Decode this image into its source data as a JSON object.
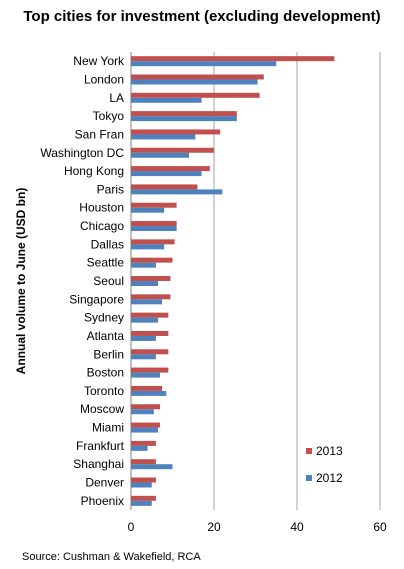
{
  "chart_data": {
    "type": "bar",
    "orientation": "horizontal",
    "title": "Top cities for investment (excluding development)",
    "ylabel": "Annual volume to June (USD bn)",
    "xlabel": "",
    "source": "Source: Cushman & Wakefield, RCA",
    "xlim": [
      0,
      60
    ],
    "xticks": [
      "0",
      "20",
      "40",
      "60"
    ],
    "grid": true,
    "legend_position": "lower-right",
    "categories": [
      "New York",
      "London",
      "LA",
      "Tokyo",
      "San Fran",
      "Washington DC",
      "Hong Kong",
      "Paris",
      "Houston",
      "Chicago",
      "Dallas",
      "Seattle",
      "Seoul",
      "Singapore",
      "Sydney",
      "Atlanta",
      "Berlin",
      "Boston",
      "Toronto",
      "Moscow",
      "Miami",
      "Frankfurt",
      "Shanghai",
      "Denver",
      "Phoenix"
    ],
    "series": [
      {
        "name": "2013",
        "color": "#c0504d",
        "values": [
          49,
          32,
          31,
          25.5,
          21.5,
          20,
          19,
          16,
          11,
          11,
          10.5,
          10,
          9.5,
          9.5,
          9,
          9,
          9,
          9,
          7.5,
          7,
          7,
          6,
          6,
          6,
          6
        ]
      },
      {
        "name": "2012",
        "color": "#4f81bd",
        "values": [
          35,
          30.5,
          17,
          25.5,
          15.5,
          14,
          17,
          22,
          8,
          11,
          8,
          6,
          6.5,
          7.5,
          6.5,
          6,
          6,
          7,
          8.5,
          5.5,
          6.5,
          4,
          10,
          5,
          5
        ]
      }
    ]
  }
}
